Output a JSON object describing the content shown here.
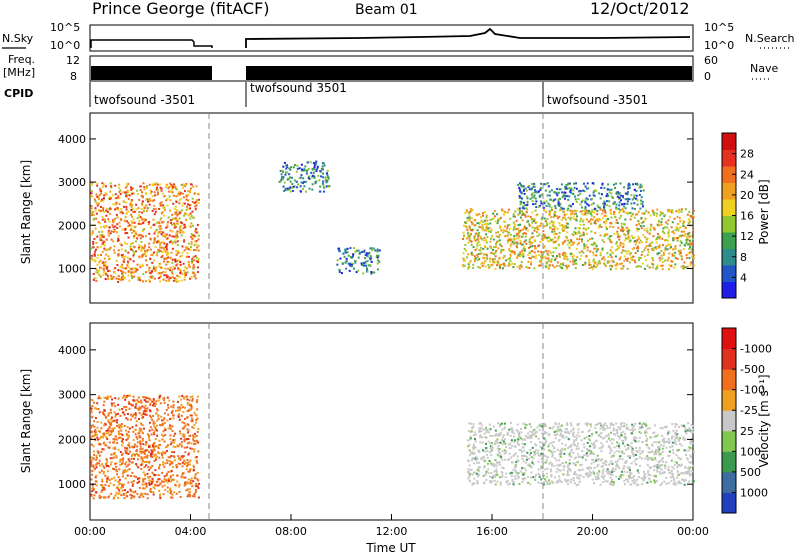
{
  "header": {
    "station": "Prince George (fitACF)",
    "beam": "Beam 01",
    "date": "12/Oct/2012"
  },
  "panels": {
    "nsky": {
      "label": "N.Sky",
      "tick_top": "10^5",
      "tick_bottom": "10^0"
    },
    "nsearch": {
      "label": "N.Search",
      "tick_top": "10^5",
      "tick_bottom": "10^0"
    },
    "freq": {
      "label_line1": "Freq.",
      "label_line2": "[MHz]",
      "tick_top": "12",
      "tick_bottom": "8"
    },
    "nave": {
      "label": "Nave",
      "tick_top": "60",
      "tick_bottom": "0"
    },
    "cpid": {
      "label": "CPID",
      "segments": [
        {
          "name": "twofsound -3501",
          "start_hour": 0.0
        },
        {
          "name": "twofsound 3501",
          "start_hour": 6.0
        },
        {
          "name": "twofsound -3501",
          "start_hour": 18.0
        }
      ]
    }
  },
  "chart_data": [
    {
      "type": "heatmap",
      "name": "power",
      "ylabel": "Slant Range [km]",
      "yticks": [
        "1000",
        "2000",
        "3000",
        "4000"
      ],
      "ylim": [
        200,
        4600
      ],
      "xlim": [
        0,
        24
      ],
      "colorbar": {
        "label": "Power [dB]",
        "ticks": [
          "4",
          "8",
          "12",
          "16",
          "20",
          "24",
          "28"
        ],
        "colors": [
          "#1e1ee6",
          "#2255c8",
          "#2e8c8c",
          "#3ca050",
          "#90c830",
          "#f0d020",
          "#f0a020",
          "#f07020",
          "#e63020",
          "#d01010"
        ]
      },
      "data_gaps_hours": [
        [
          4.5,
          6.0
        ]
      ],
      "scatter_regions": [
        {
          "t": [
            0.0,
            4.3
          ],
          "r": [
            700,
            3000
          ],
          "level": 22
        },
        {
          "t": [
            7.5,
            9.5
          ],
          "r": [
            2800,
            3500
          ],
          "level": 8
        },
        {
          "t": [
            9.8,
            11.5
          ],
          "r": [
            900,
            1500
          ],
          "level": 8
        },
        {
          "t": [
            14.8,
            24.0
          ],
          "r": [
            1000,
            2400
          ],
          "level": 18
        },
        {
          "t": [
            17.0,
            22.0
          ],
          "r": [
            2400,
            3000
          ],
          "level": 8
        }
      ]
    },
    {
      "type": "heatmap",
      "name": "velocity",
      "ylabel": "Slant Range [km]",
      "yticks": [
        "1000",
        "2000",
        "3000",
        "4000"
      ],
      "ylim": [
        200,
        4600
      ],
      "xlim": [
        0,
        24
      ],
      "xticks": [
        "00:00",
        "04:00",
        "08:00",
        "12:00",
        "16:00",
        "20:00",
        "00:00"
      ],
      "xlabel": "Time UT",
      "colorbar": {
        "label": "Velocity [m s⁻¹]",
        "ticks": [
          "1000",
          "500",
          "100",
          "25",
          "-25",
          "-100",
          "-500",
          "-1000"
        ],
        "colors": [
          "#2040c0",
          "#3c6ca0",
          "#3c9a50",
          "#80c850",
          "#c8c8c8",
          "#f0a020",
          "#f07020",
          "#e03020",
          "#e01010"
        ]
      },
      "data_gaps_hours": [
        [
          4.5,
          6.0
        ]
      ],
      "scatter_regions": [
        {
          "t": [
            0.0,
            4.3
          ],
          "r": [
            700,
            3000
          ],
          "level": -150
        },
        {
          "t": [
            15.0,
            24.0
          ],
          "r": [
            1000,
            2400
          ],
          "level": 0
        }
      ]
    }
  ]
}
